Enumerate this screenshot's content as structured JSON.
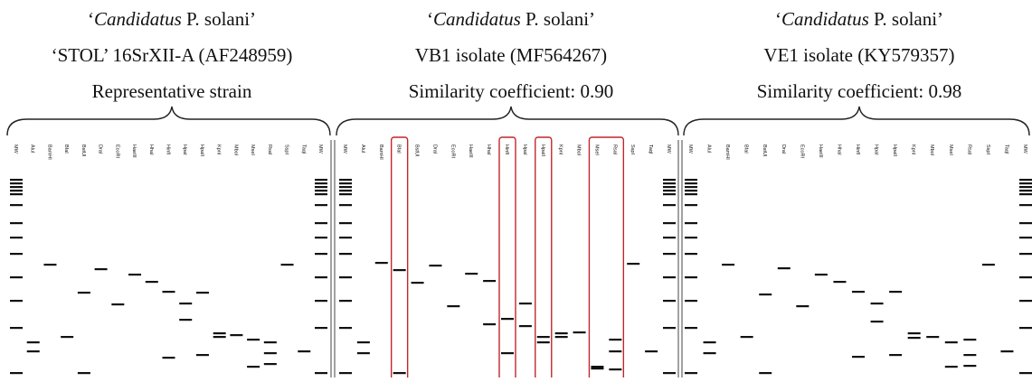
{
  "panels": [
    {
      "species_open": "‘",
      "species_italic": "Candidatus",
      "species_rest": " P. solani’",
      "line2": "‘STOL’ 16SrXII-A (AF248959)",
      "line3": "Representative strain",
      "lanes": [
        "MW",
        "AluI",
        "BamHI",
        "BfaI",
        "BstUI",
        "DraI",
        "EcoRI",
        "HaeIII",
        "HhaI",
        "HinfI",
        "HpaI",
        "HpaII",
        "KpnI",
        "MboI",
        "MseI",
        "RsaI",
        "SspI",
        "TaqI",
        "MW"
      ]
    },
    {
      "species_open": "‘",
      "species_italic": "Candidatus",
      "species_rest": " P. solani’",
      "line2": "VB1 isolate (MF564267)",
      "line3": "Similarity coefficient: 0.90",
      "lanes": [
        "MW",
        "AluI",
        "BamHI",
        "BfaI",
        "BstUI",
        "DraI",
        "EcoRI",
        "HaeIII",
        "HhaI",
        "HinfI",
        "HpaI",
        "HpaII",
        "KpnI",
        "MboI",
        "MseI",
        "RsaI",
        "SspI",
        "TaqI",
        "MW"
      ]
    },
    {
      "species_open": "‘",
      "species_italic": "Candidatus",
      "species_rest": " P. solani’",
      "line2": "VE1 isolate (KY579357)",
      "line3": "Similarity coefficient: 0.98",
      "lanes": [
        "MW",
        "AluI",
        "BamHI",
        "BfaI",
        "BstUI",
        "DraI",
        "EcoRI",
        "HaeIII",
        "HhaI",
        "HinfI",
        "HpaI",
        "HpaII",
        "KpnI",
        "MboI",
        "MseI",
        "RsaI",
        "SspI",
        "TaqI",
        "MW"
      ]
    }
  ]
}
